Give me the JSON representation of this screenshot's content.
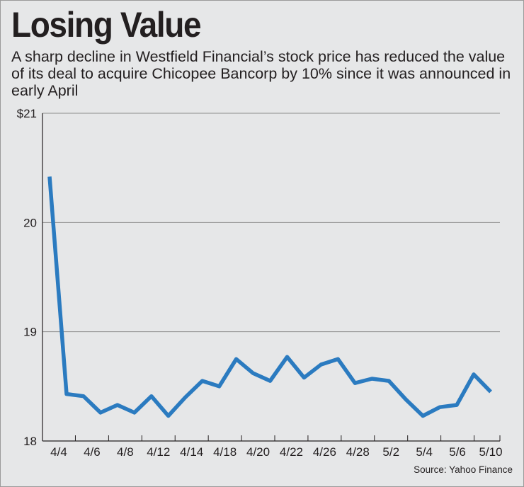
{
  "title": "Losing Value",
  "subtitle": "A sharp decline in Westfield Financial’s stock price has reduced the value of its deal to acquire Chicopee Bancorp by 10% since it was announced in early April",
  "source": "Source: Yahoo Finance",
  "colors": {
    "line": "#2b7bc0",
    "background": "#e6e7e8",
    "grid": "#8c8c8c",
    "text": "#231f20"
  },
  "chart_data": {
    "type": "line",
    "title": "Losing Value",
    "xlabel": "",
    "ylabel": "",
    "ylim": [
      18,
      21
    ],
    "y_ticks": [
      {
        "value": 21,
        "label": "$21"
      },
      {
        "value": 20,
        "label": "20"
      },
      {
        "value": 19,
        "label": "19"
      },
      {
        "value": 18,
        "label": "18"
      }
    ],
    "x_tick_labels": [
      "4/4",
      "4/6",
      "4/8",
      "4/12",
      "4/14",
      "4/18",
      "4/20",
      "4/22",
      "4/26",
      "4/28",
      "5/2",
      "5/4",
      "5/6",
      "5/10"
    ],
    "grid": true,
    "series": [
      {
        "name": "Westfield Financial stock price",
        "values": [
          20.42,
          18.43,
          18.41,
          18.26,
          18.33,
          18.26,
          18.41,
          18.23,
          18.4,
          18.55,
          18.5,
          18.75,
          18.62,
          18.55,
          18.77,
          18.58,
          18.7,
          18.75,
          18.53,
          18.57,
          18.55,
          18.38,
          18.23,
          18.31,
          18.33,
          18.61,
          18.45
        ]
      }
    ]
  }
}
